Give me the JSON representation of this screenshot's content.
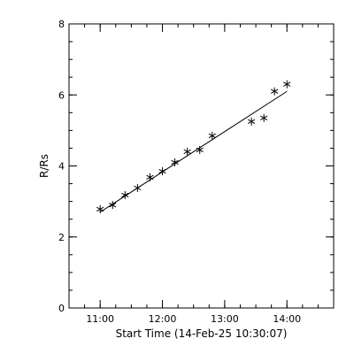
{
  "chart_data": {
    "type": "scatter",
    "xlabel": "Start Time (14-Feb-25 10:30:07)",
    "ylabel": "R/Rs",
    "x_unit": "hours",
    "xlim": [
      10.5,
      14.75
    ],
    "ylim": [
      0,
      8
    ],
    "x_ticks": [
      {
        "value": 11,
        "label": "11:00"
      },
      {
        "value": 12,
        "label": "12:00"
      },
      {
        "value": 13,
        "label": "13:00"
      },
      {
        "value": 14,
        "label": "14:00"
      }
    ],
    "x_minor_step": 0.25,
    "y_ticks": [
      {
        "value": 0,
        "label": "0"
      },
      {
        "value": 2,
        "label": "2"
      },
      {
        "value": 4,
        "label": "4"
      },
      {
        "value": 6,
        "label": "6"
      },
      {
        "value": 8,
        "label": "8"
      }
    ],
    "y_minor_step": 0.5,
    "grid": false,
    "marker": "asterisk",
    "points": [
      {
        "x": 11.0,
        "y": 2.78
      },
      {
        "x": 11.2,
        "y": 2.9
      },
      {
        "x": 11.4,
        "y": 3.18
      },
      {
        "x": 11.6,
        "y": 3.38
      },
      {
        "x": 11.8,
        "y": 3.68
      },
      {
        "x": 12.0,
        "y": 3.85
      },
      {
        "x": 12.2,
        "y": 4.1
      },
      {
        "x": 12.4,
        "y": 4.4
      },
      {
        "x": 12.6,
        "y": 4.45
      },
      {
        "x": 12.8,
        "y": 4.85
      },
      {
        "x": 13.43,
        "y": 5.25
      },
      {
        "x": 13.63,
        "y": 5.35
      },
      {
        "x": 13.8,
        "y": 6.1
      },
      {
        "x": 14.0,
        "y": 6.3
      }
    ],
    "fit_line": {
      "x": [
        11.0,
        14.0
      ],
      "y": [
        2.7,
        6.1
      ]
    }
  }
}
